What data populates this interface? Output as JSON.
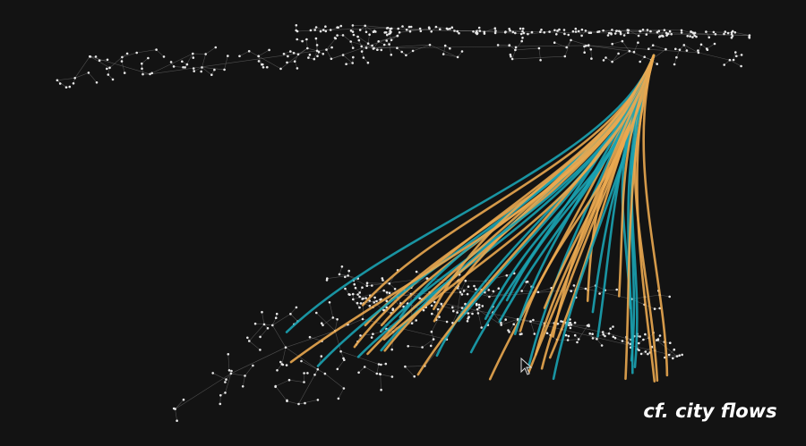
{
  "caption": "cf. city flows"
}
